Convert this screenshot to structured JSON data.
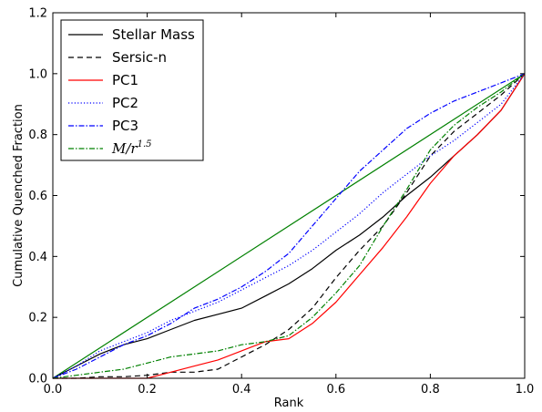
{
  "chart_data": {
    "type": "line",
    "title": "",
    "xlabel": "Rank",
    "ylabel": "Cumulative Quenched Fraction",
    "xlim": [
      0.0,
      1.0
    ],
    "ylim": [
      0.0,
      1.2
    ],
    "xticks": [
      "0.0",
      "0.2",
      "0.4",
      "0.6",
      "0.8",
      "1.0"
    ],
    "yticks": [
      "0.0",
      "0.2",
      "0.4",
      "0.6",
      "0.8",
      "1.0",
      "1.2"
    ],
    "grid": false,
    "legend": "top-left",
    "reference_line": {
      "x": [
        0.0,
        1.0
      ],
      "y": [
        0.0,
        1.0
      ],
      "color": "#008000"
    },
    "series": [
      {
        "name": "Stellar Mass",
        "color": "#000000",
        "dash": "solid",
        "x": [
          0.0,
          0.05,
          0.1,
          0.15,
          0.2,
          0.25,
          0.3,
          0.35,
          0.4,
          0.45,
          0.5,
          0.55,
          0.6,
          0.65,
          0.7,
          0.75,
          0.8,
          0.85,
          0.9,
          0.95,
          1.0
        ],
        "y": [
          0.0,
          0.04,
          0.08,
          0.11,
          0.13,
          0.16,
          0.19,
          0.21,
          0.23,
          0.27,
          0.31,
          0.36,
          0.42,
          0.47,
          0.53,
          0.6,
          0.66,
          0.73,
          0.8,
          0.88,
          1.0
        ]
      },
      {
        "name": "Sersic-n",
        "color": "#000000",
        "dash": "dashed",
        "x": [
          0.0,
          0.05,
          0.1,
          0.15,
          0.2,
          0.25,
          0.3,
          0.35,
          0.4,
          0.45,
          0.5,
          0.55,
          0.6,
          0.65,
          0.7,
          0.75,
          0.8,
          0.85,
          0.9,
          0.95,
          1.0
        ],
        "y": [
          0.0,
          0.0,
          0.005,
          0.005,
          0.01,
          0.02,
          0.02,
          0.03,
          0.07,
          0.11,
          0.16,
          0.23,
          0.33,
          0.42,
          0.5,
          0.61,
          0.73,
          0.81,
          0.87,
          0.93,
          1.0
        ]
      },
      {
        "name": "PC1",
        "color": "#ff0000",
        "dash": "solid",
        "x": [
          0.0,
          0.05,
          0.1,
          0.15,
          0.2,
          0.25,
          0.3,
          0.35,
          0.4,
          0.45,
          0.5,
          0.55,
          0.6,
          0.65,
          0.7,
          0.75,
          0.8,
          0.85,
          0.9,
          0.95,
          1.0
        ],
        "y": [
          0.0,
          0.0,
          0.0,
          0.0,
          0.0,
          0.02,
          0.04,
          0.06,
          0.09,
          0.12,
          0.13,
          0.18,
          0.25,
          0.34,
          0.43,
          0.53,
          0.64,
          0.73,
          0.8,
          0.88,
          1.0
        ]
      },
      {
        "name": "PC2",
        "color": "#0000ff",
        "dash": "dotted",
        "x": [
          0.0,
          0.05,
          0.1,
          0.15,
          0.2,
          0.25,
          0.3,
          0.35,
          0.4,
          0.45,
          0.5,
          0.55,
          0.6,
          0.65,
          0.7,
          0.75,
          0.8,
          0.85,
          0.9,
          0.95,
          1.0
        ],
        "y": [
          0.0,
          0.04,
          0.09,
          0.12,
          0.15,
          0.19,
          0.22,
          0.25,
          0.29,
          0.33,
          0.37,
          0.42,
          0.48,
          0.54,
          0.61,
          0.67,
          0.73,
          0.78,
          0.84,
          0.9,
          1.0
        ]
      },
      {
        "name": "PC3",
        "color": "#0000ff",
        "dash": "dashdot",
        "x": [
          0.0,
          0.05,
          0.1,
          0.15,
          0.2,
          0.25,
          0.3,
          0.35,
          0.4,
          0.45,
          0.5,
          0.55,
          0.6,
          0.65,
          0.7,
          0.75,
          0.8,
          0.85,
          0.9,
          0.95,
          1.0
        ],
        "y": [
          0.0,
          0.03,
          0.07,
          0.11,
          0.14,
          0.18,
          0.23,
          0.26,
          0.3,
          0.35,
          0.41,
          0.5,
          0.59,
          0.68,
          0.75,
          0.82,
          0.87,
          0.91,
          0.94,
          0.97,
          1.0
        ]
      },
      {
        "name": "M/r^1.5",
        "label_main": "M/r",
        "label_exp": "1.5",
        "color": "#008000",
        "dash": "dashdot",
        "x": [
          0.0,
          0.05,
          0.1,
          0.15,
          0.2,
          0.25,
          0.3,
          0.35,
          0.4,
          0.45,
          0.5,
          0.55,
          0.6,
          0.65,
          0.7,
          0.75,
          0.8,
          0.85,
          0.9,
          0.95,
          1.0
        ],
        "y": [
          0.0,
          0.01,
          0.02,
          0.03,
          0.05,
          0.07,
          0.08,
          0.09,
          0.11,
          0.12,
          0.14,
          0.2,
          0.28,
          0.37,
          0.5,
          0.62,
          0.75,
          0.83,
          0.89,
          0.94,
          1.0
        ]
      }
    ]
  }
}
